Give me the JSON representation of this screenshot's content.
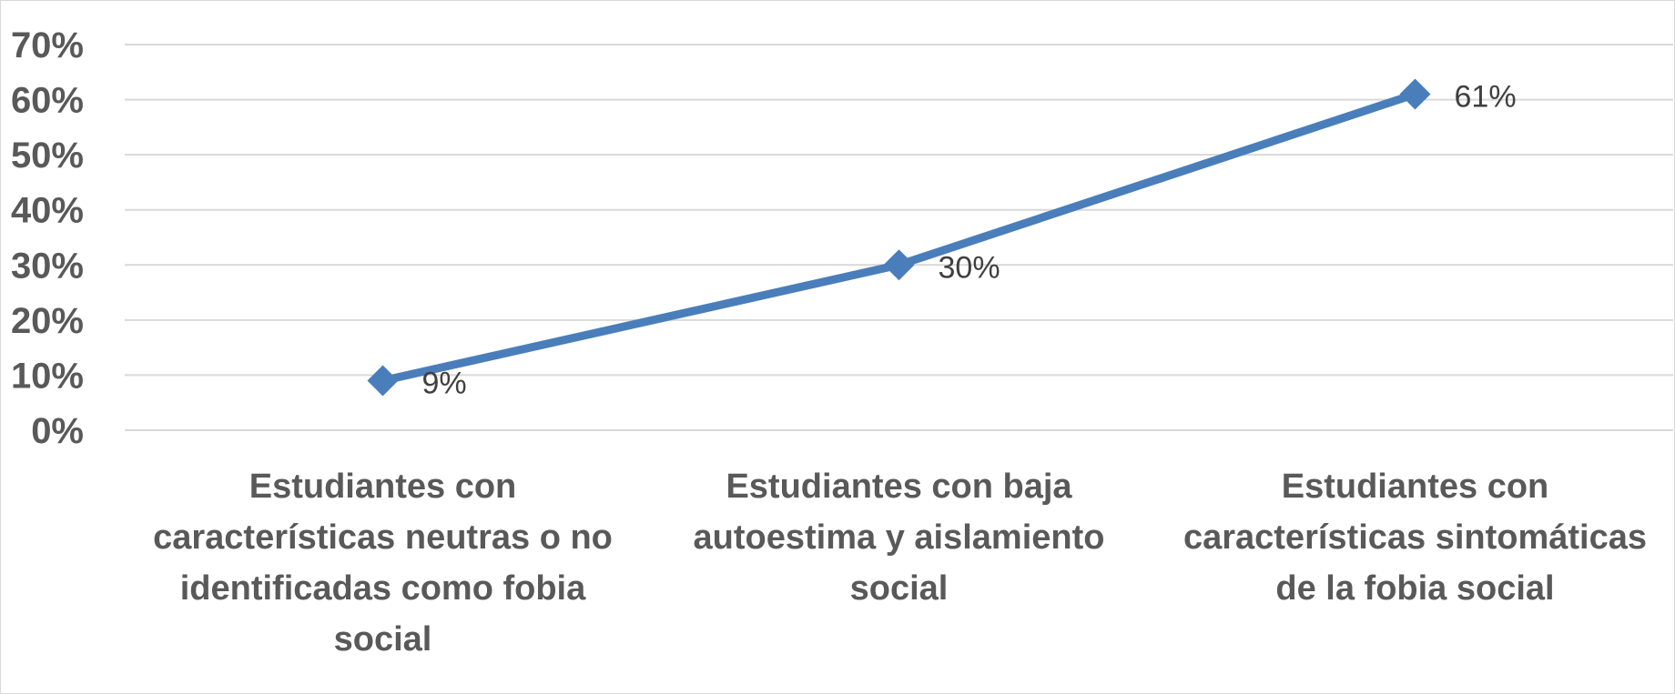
{
  "chart_data": {
    "type": "line",
    "title": "",
    "xlabel": "",
    "ylabel": "",
    "categories": [
      [
        "Estudiantes con",
        "características neutras o no",
        "identificadas como fobia",
        "social"
      ],
      [
        "Estudiantes con baja",
        "autoestima y aislamiento",
        "social"
      ],
      [
        "Estudiantes con",
        "características sintomáticas",
        "de la fobia social"
      ]
    ],
    "series": [
      {
        "values": [
          9,
          30,
          61
        ],
        "data_labels": [
          "9%",
          "30%",
          "61%"
        ],
        "color": "#4a7ebb",
        "marker": "diamond"
      }
    ],
    "y_ticks": [
      "0%",
      "10%",
      "20%",
      "30%",
      "40%",
      "50%",
      "60%",
      "70%"
    ],
    "ylim": [
      0,
      70
    ],
    "grid": true,
    "legend": "none"
  }
}
